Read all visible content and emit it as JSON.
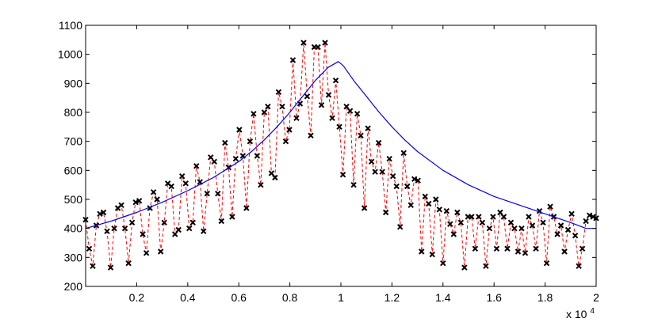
{
  "chart_data": {
    "type": "line",
    "xlim": [
      0,
      20000
    ],
    "ylim": [
      200,
      1100
    ],
    "x_ticks": [
      2000,
      4000,
      6000,
      8000,
      10000,
      12000,
      14000,
      16000,
      18000,
      20000
    ],
    "x_tick_labels": [
      "0.2",
      "0.4",
      "0.6",
      "0.8",
      "1",
      "1.2",
      "1.4",
      "1.6",
      "1.8",
      "2"
    ],
    "y_ticks": [
      200,
      300,
      400,
      500,
      600,
      700,
      800,
      900,
      1000,
      1100
    ],
    "y_tick_labels": [
      "200",
      "300",
      "400",
      "500",
      "600",
      "700",
      "800",
      "900",
      "1000",
      "1100"
    ],
    "x_multiplier": {
      "base": "x 10",
      "exponent": "4"
    },
    "grid": false,
    "legend": "none",
    "series": [
      {
        "style": "black x markers joined by red dashed line",
        "marker_color": "#000000",
        "line_color": "#ff0000",
        "points": [
          [
            0,
            430
          ],
          [
            140,
            330
          ],
          [
            280,
            270
          ],
          [
            420,
            410
          ],
          [
            560,
            450
          ],
          [
            700,
            455
          ],
          [
            840,
            390
          ],
          [
            980,
            265
          ],
          [
            1120,
            400
          ],
          [
            1260,
            470
          ],
          [
            1400,
            480
          ],
          [
            1540,
            400
          ],
          [
            1680,
            280
          ],
          [
            1820,
            420
          ],
          [
            1960,
            490
          ],
          [
            2100,
            495
          ],
          [
            2240,
            380
          ],
          [
            2380,
            315
          ],
          [
            2520,
            470
          ],
          [
            2660,
            525
          ],
          [
            2800,
            500
          ],
          [
            2940,
            320
          ],
          [
            3080,
            420
          ],
          [
            3220,
            555
          ],
          [
            3360,
            545
          ],
          [
            3500,
            380
          ],
          [
            3640,
            395
          ],
          [
            3780,
            580
          ],
          [
            3920,
            555
          ],
          [
            4060,
            400
          ],
          [
            4200,
            420
          ],
          [
            4340,
            615
          ],
          [
            4480,
            560
          ],
          [
            4620,
            390
          ],
          [
            4760,
            520
          ],
          [
            4900,
            645
          ],
          [
            5040,
            630
          ],
          [
            5180,
            520
          ],
          [
            5320,
            425
          ],
          [
            5460,
            695
          ],
          [
            5600,
            610
          ],
          [
            5740,
            440
          ],
          [
            5880,
            640
          ],
          [
            6020,
            740
          ],
          [
            6160,
            650
          ],
          [
            6300,
            470
          ],
          [
            6440,
            700
          ],
          [
            6580,
            795
          ],
          [
            6720,
            650
          ],
          [
            6860,
            550
          ],
          [
            7000,
            800
          ],
          [
            7140,
            820
          ],
          [
            7280,
            590
          ],
          [
            7420,
            575
          ],
          [
            7560,
            870
          ],
          [
            7700,
            820
          ],
          [
            7840,
            700
          ],
          [
            7980,
            740
          ],
          [
            8120,
            980
          ],
          [
            8260,
            780
          ],
          [
            8400,
            830
          ],
          [
            8540,
            1040
          ],
          [
            8680,
            855
          ],
          [
            8820,
            720
          ],
          [
            8960,
            1025
          ],
          [
            9100,
            1025
          ],
          [
            9240,
            825
          ],
          [
            9380,
            1040
          ],
          [
            9520,
            860
          ],
          [
            9660,
            780
          ],
          [
            9800,
            910
          ],
          [
            9940,
            750
          ],
          [
            10080,
            585
          ],
          [
            10220,
            820
          ],
          [
            10360,
            805
          ],
          [
            10500,
            550
          ],
          [
            10640,
            795
          ],
          [
            10780,
            720
          ],
          [
            10920,
            470
          ],
          [
            11060,
            745
          ],
          [
            11200,
            630
          ],
          [
            11340,
            595
          ],
          [
            11480,
            695
          ],
          [
            11620,
            595
          ],
          [
            11760,
            455
          ],
          [
            11900,
            640
          ],
          [
            12040,
            580
          ],
          [
            12180,
            545
          ],
          [
            12320,
            405
          ],
          [
            12460,
            660
          ],
          [
            12600,
            545
          ],
          [
            12740,
            480
          ],
          [
            12880,
            570
          ],
          [
            13020,
            565
          ],
          [
            13160,
            320
          ],
          [
            13300,
            510
          ],
          [
            13440,
            485
          ],
          [
            13580,
            310
          ],
          [
            13720,
            500
          ],
          [
            13860,
            465
          ],
          [
            14000,
            280
          ],
          [
            14140,
            460
          ],
          [
            14280,
            415
          ],
          [
            14420,
            380
          ],
          [
            14560,
            455
          ],
          [
            14700,
            420
          ],
          [
            14840,
            265
          ],
          [
            14980,
            440
          ],
          [
            15120,
            440
          ],
          [
            15260,
            330
          ],
          [
            15400,
            440
          ],
          [
            15540,
            420
          ],
          [
            15680,
            270
          ],
          [
            15820,
            400
          ],
          [
            15960,
            440
          ],
          [
            16100,
            330
          ],
          [
            16240,
            455
          ],
          [
            16380,
            440
          ],
          [
            16520,
            330
          ],
          [
            16660,
            420
          ],
          [
            16800,
            400
          ],
          [
            16940,
            320
          ],
          [
            17080,
            400
          ],
          [
            17220,
            315
          ],
          [
            17360,
            440
          ],
          [
            17500,
            410
          ],
          [
            17640,
            330
          ],
          [
            17780,
            460
          ],
          [
            17920,
            420
          ],
          [
            18060,
            280
          ],
          [
            18200,
            475
          ],
          [
            18340,
            440
          ],
          [
            18480,
            380
          ],
          [
            18620,
            410
          ],
          [
            18760,
            320
          ],
          [
            18900,
            395
          ],
          [
            19040,
            450
          ],
          [
            19180,
            375
          ],
          [
            19320,
            270
          ],
          [
            19460,
            330
          ],
          [
            19600,
            425
          ],
          [
            19740,
            445
          ],
          [
            19880,
            440
          ],
          [
            20000,
            435
          ]
        ]
      },
      {
        "style": "smooth blue line",
        "line_color": "#0000ff",
        "points": [
          [
            0,
            400
          ],
          [
            1000,
            425
          ],
          [
            2000,
            455
          ],
          [
            3000,
            490
          ],
          [
            4000,
            530
          ],
          [
            5000,
            575
          ],
          [
            6000,
            630
          ],
          [
            6500,
            665
          ],
          [
            7000,
            705
          ],
          [
            7500,
            750
          ],
          [
            8000,
            800
          ],
          [
            8500,
            855
          ],
          [
            9000,
            910
          ],
          [
            9500,
            955
          ],
          [
            9900,
            975
          ],
          [
            10100,
            960
          ],
          [
            10500,
            910
          ],
          [
            11000,
            855
          ],
          [
            11500,
            800
          ],
          [
            12000,
            750
          ],
          [
            12500,
            705
          ],
          [
            13000,
            665
          ],
          [
            14000,
            600
          ],
          [
            15000,
            550
          ],
          [
            16000,
            510
          ],
          [
            17000,
            480
          ],
          [
            18000,
            450
          ],
          [
            19000,
            420
          ],
          [
            19600,
            400
          ],
          [
            20000,
            400
          ]
        ]
      }
    ]
  }
}
